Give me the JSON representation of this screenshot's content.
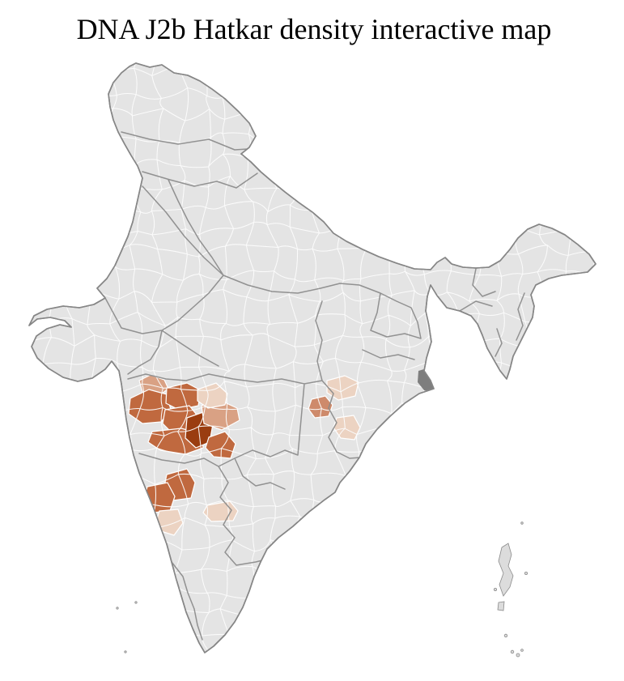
{
  "title": "DNA J2b Hatkar density interactive map",
  "map": {
    "background_color": "#ffffff",
    "land_fill": "#e4e4e4",
    "district_border_color": "#fcfcfc",
    "state_border_color": "#8a8a8a",
    "outline_color": "#868686",
    "island_fill": "#dcdcdc",
    "delta_marsh_fill": "#7e7e7e",
    "density_palette": [
      "#f2dfd3",
      "#ecd3c2",
      "#d9a184",
      "#ce8a6b",
      "#c0693f",
      "#9a3d10"
    ],
    "shaded_districts": [
      {
        "id": "d01",
        "level": 2
      },
      {
        "id": "d02",
        "level": 4
      },
      {
        "id": "d03",
        "level": 4
      },
      {
        "id": "d04",
        "level": 4
      },
      {
        "id": "d05",
        "level": 4
      },
      {
        "id": "d06",
        "level": 5
      },
      {
        "id": "d07",
        "level": 4
      },
      {
        "id": "d08",
        "level": 2
      },
      {
        "id": "d09",
        "level": 1
      },
      {
        "id": "d10",
        "level": 4
      },
      {
        "id": "d11",
        "level": 4
      },
      {
        "id": "d12",
        "level": 1
      },
      {
        "id": "d13",
        "level": 1
      },
      {
        "id": "d14",
        "level": 3
      },
      {
        "id": "d15",
        "level": 1
      },
      {
        "id": "d16",
        "level": 1
      }
    ]
  }
}
